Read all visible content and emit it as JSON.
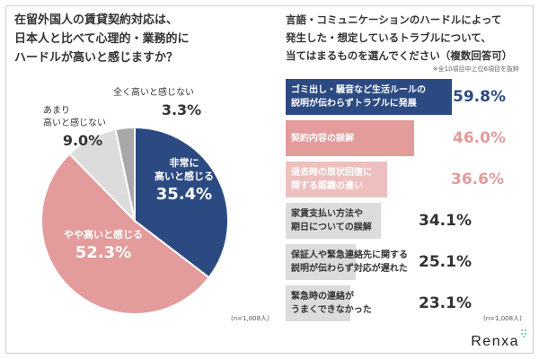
{
  "left_title": "在留外国人の賃貸契約対応は、\n日本人と比べて心理的・業務的に\nハードルが高いと感じますか？",
  "right_title": "言語・コミュニケーションのハードルによって\n発生した・想定しているトラブルについて、\n当てはまるものを選んでください（複数回答可）",
  "right_note": "※全10項目中上位6項目を抜粋",
  "colors": {
    "navy": "#2c4a82",
    "pink": "#e39b9b",
    "pink_light": "#eebfbf",
    "gray": "#dcdcdc",
    "gray_dark": "#a8a8a8",
    "text": "#333333"
  },
  "chart_data": [
    {
      "type": "pie",
      "title": "在留外国人の賃貸契約対応は、日本人と比べて心理的・業務的にハードルが高いと感じますか？",
      "slices": [
        {
          "label": "非常に\n高いと感じる",
          "value": 35.4,
          "value_text": "35.4%",
          "color": "#2c4a82"
        },
        {
          "label": "やや高いと感じる",
          "value": 52.3,
          "value_text": "52.3%",
          "color": "#e39b9b"
        },
        {
          "label": "あまり\n高いと感じない",
          "value": 9.0,
          "value_text": "9.0%",
          "color": "#dcdcdc"
        },
        {
          "label": "全く高いと感じない",
          "value": 3.3,
          "value_text": "3.3%",
          "color": "#a8a8a8"
        }
      ],
      "sample": "(n=1,008人)"
    },
    {
      "type": "bar",
      "title": "言語・コミュニケーションのハードルによって発生した・想定しているトラブルについて、当てはまるものを選んでください（複数回答可）",
      "categories": [
        "ゴミ出し・騒音など生活ルールの\n説明が伝わらずトラブルに発展",
        "契約内容の誤解",
        "退去時の原状回復に\n関する認識の違い",
        "家賃支払い方法や\n期日についての誤解",
        "保証人や緊急連絡先に関する\n説明が伝わらず対応が遅れた",
        "緊急時の連絡が\nうまくできなかった"
      ],
      "values": [
        59.8,
        46.0,
        36.6,
        34.1,
        25.1,
        23.1
      ],
      "value_texts": [
        "59.8%",
        "46.0%",
        "36.6%",
        "34.1%",
        "25.1%",
        "23.1%"
      ],
      "ylim": [
        0,
        100
      ],
      "sample": "(n=1,008人)"
    }
  ],
  "brand": "Renxa"
}
